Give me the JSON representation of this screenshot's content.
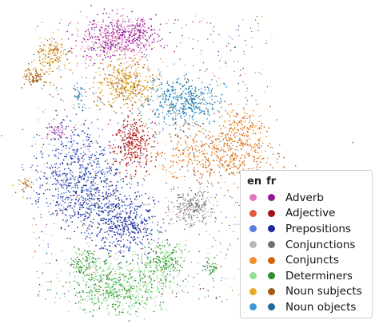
{
  "chart_data": {
    "type": "scatter",
    "legend_header": {
      "col1": "en",
      "col2": "fr"
    },
    "legend_position": "bottom-right",
    "axes_visible": false,
    "grid": false,
    "categories": [
      {
        "label": "Adverb",
        "en_color": "#e377c2",
        "fr_color": "#8e1a96"
      },
      {
        "label": "Adjective",
        "en_color": "#e05a3b",
        "fr_color": "#a50f15"
      },
      {
        "label": "Prepositions",
        "en_color": "#5b7be0",
        "fr_color": "#1a2a96"
      },
      {
        "label": "Conjunctions",
        "en_color": "#b8b8b8",
        "fr_color": "#6e6e6e"
      },
      {
        "label": "Conjuncts",
        "en_color": "#f28e2b",
        "fr_color": "#d0650b"
      },
      {
        "label": "Determiners",
        "en_color": "#8fe08f",
        "fr_color": "#2e8b2e"
      },
      {
        "label": "Noun subjects",
        "en_color": "#e6a92a",
        "fr_color": "#a35a12"
      },
      {
        "label": "Noun objects",
        "en_color": "#3a9bd5",
        "fr_color": "#1f6b94"
      }
    ]
  }
}
